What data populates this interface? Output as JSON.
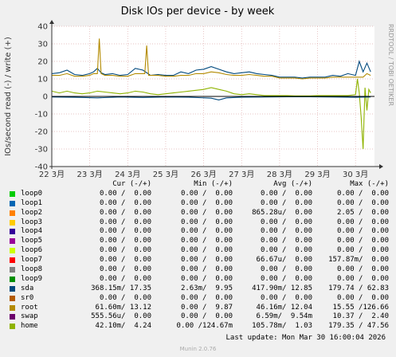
{
  "chart_data": {
    "type": "line",
    "title": "Disk IOs per device - by week",
    "ylabel": "IOs/second read (-) / write (+)",
    "side_label": "RRDTOOL / TOBI OETIKER",
    "ylim": [
      -40,
      40
    ],
    "yticks": [
      -40,
      -30,
      -20,
      -10,
      0,
      10,
      20,
      30,
      40
    ],
    "x_ticks": [
      "22 3月",
      "23 3月",
      "24 3月",
      "25 3月",
      "26 3月",
      "27 3月",
      "28 3月",
      "29 3月",
      "30 3月"
    ],
    "x_range_days": [
      22,
      30.5
    ],
    "grid": true,
    "series": [
      {
        "name": "sda",
        "color": "#00487d",
        "x": [
          22.0,
          22.2,
          22.4,
          22.6,
          22.8,
          23.0,
          23.1,
          23.2,
          23.3,
          23.4,
          23.6,
          23.8,
          24.0,
          24.2,
          24.4,
          24.6,
          24.8,
          25.0,
          25.2,
          25.4,
          25.6,
          25.8,
          26.0,
          26.2,
          26.4,
          26.6,
          26.8,
          27.0,
          27.2,
          27.4,
          27.6,
          27.8,
          28.0,
          28.2,
          28.4,
          28.6,
          28.8,
          29.0,
          29.2,
          29.4,
          29.6,
          29.8,
          30.0,
          30.1,
          30.2,
          30.3,
          30.4
        ],
        "values": [
          13,
          13.5,
          15,
          12.5,
          12,
          13,
          14,
          16,
          13.5,
          12.5,
          13,
          12,
          12.5,
          16,
          15,
          12,
          12.5,
          12,
          12,
          14,
          13,
          15,
          15.5,
          17,
          15.5,
          14,
          13,
          13.5,
          14,
          13,
          12.5,
          12,
          11,
          11,
          11,
          10.5,
          11,
          11,
          11,
          12,
          11.5,
          13,
          12,
          20,
          14,
          19,
          14
        ]
      },
      {
        "name": "root",
        "color": "#b38a00",
        "x": [
          22.0,
          22.2,
          22.4,
          22.6,
          22.8,
          23.0,
          23.1,
          23.2,
          23.25,
          23.3,
          23.4,
          23.6,
          23.8,
          24.0,
          24.2,
          24.45,
          24.5,
          24.55,
          24.8,
          25.0,
          25.2,
          25.4,
          25.6,
          25.8,
          26.0,
          26.2,
          26.4,
          26.6,
          26.8,
          27.0,
          27.2,
          27.4,
          27.6,
          27.8,
          28.0,
          28.2,
          28.4,
          28.6,
          28.8,
          29.0,
          29.2,
          29.4,
          29.6,
          29.8,
          30.0,
          30.1,
          30.2,
          30.3,
          30.4
        ],
        "values": [
          12,
          12,
          13,
          11.5,
          11.5,
          12,
          13,
          13,
          33,
          13,
          12,
          12,
          11.5,
          11.5,
          13,
          13,
          29,
          12,
          12,
          11.5,
          11.5,
          12,
          12,
          13,
          13,
          14,
          13.5,
          12.5,
          12,
          12,
          12.5,
          12,
          11.5,
          11.5,
          10.5,
          10.5,
          10.5,
          10,
          10.5,
          10.5,
          10.5,
          11,
          11,
          11,
          11,
          11,
          11,
          13,
          12
        ]
      },
      {
        "name": "home",
        "color": "#8fb300",
        "x": [
          22.0,
          22.2,
          22.4,
          22.6,
          22.8,
          23.0,
          23.2,
          23.4,
          23.6,
          23.8,
          24.0,
          24.2,
          24.4,
          24.6,
          24.8,
          25.0,
          25.2,
          25.4,
          25.6,
          25.8,
          26.0,
          26.2,
          26.4,
          26.6,
          26.8,
          27.0,
          27.2,
          27.4,
          27.6,
          27.8,
          28.0,
          28.2,
          28.4,
          28.6,
          28.8,
          29.0,
          29.2,
          29.4,
          29.6,
          29.8,
          30.0,
          30.05,
          30.1,
          30.15,
          30.2,
          30.25,
          30.3,
          30.35,
          30.4
        ],
        "values": [
          3,
          2,
          3,
          2,
          1.5,
          2,
          3,
          2.5,
          2,
          1.5,
          2,
          3,
          2.5,
          1.5,
          1,
          1.5,
          2,
          2.5,
          3,
          3.5,
          4,
          5,
          4,
          3,
          1.5,
          1,
          1.5,
          1,
          0.5,
          0.5,
          0.5,
          0.5,
          0.3,
          0.3,
          0.3,
          0.5,
          0.5,
          0.5,
          0.5,
          0.5,
          1,
          10,
          2,
          -12,
          -30,
          5,
          -8,
          4,
          2
        ]
      },
      {
        "name": "sda read",
        "color": "#00487d",
        "x": [
          22.0,
          22.6,
          23.2,
          23.8,
          24.4,
          25.0,
          25.6,
          26.2,
          26.4,
          26.6,
          27.0,
          27.6,
          28.2,
          28.8,
          29.4,
          30.0,
          30.4
        ],
        "values": [
          -0.3,
          -0.5,
          -0.8,
          -0.3,
          -0.6,
          -0.3,
          -0.4,
          -1,
          -2,
          -0.8,
          -0.4,
          -0.3,
          -0.2,
          -0.2,
          -0.3,
          -0.5,
          -0.3
        ]
      }
    ]
  },
  "legend": {
    "headers": [
      "Cur (-/+)",
      "Min (-/+)",
      "Avg (-/+)",
      "Max (-/+)"
    ],
    "rows": [
      {
        "name": "loop0",
        "color": "#00cc00",
        "cur": "0.00 /  0.00",
        "min": "0.00 /  0.00",
        "avg": "0.00 /  0.00",
        "max": "0.00 /  0.00"
      },
      {
        "name": "loop1",
        "color": "#0066b3",
        "cur": "0.00 /  0.00",
        "min": "0.00 /  0.00",
        "avg": "0.00 /  0.00",
        "max": "0.00 /  0.00"
      },
      {
        "name": "loop2",
        "color": "#ff8000",
        "cur": "0.00 /  0.00",
        "min": "0.00 /  0.00",
        "avg": "865.28u/  0.00",
        "max": "2.05 /  0.00"
      },
      {
        "name": "loop3",
        "color": "#ffcc00",
        "cur": "0.00 /  0.00",
        "min": "0.00 /  0.00",
        "avg": "0.00 /  0.00",
        "max": "0.00 /  0.00"
      },
      {
        "name": "loop4",
        "color": "#330099",
        "cur": "0.00 /  0.00",
        "min": "0.00 /  0.00",
        "avg": "0.00 /  0.00",
        "max": "0.00 /  0.00"
      },
      {
        "name": "loop5",
        "color": "#990099",
        "cur": "0.00 /  0.00",
        "min": "0.00 /  0.00",
        "avg": "0.00 /  0.00",
        "max": "0.00 /  0.00"
      },
      {
        "name": "loop6",
        "color": "#ccff00",
        "cur": "0.00 /  0.00",
        "min": "0.00 /  0.00",
        "avg": "0.00 /  0.00",
        "max": "0.00 /  0.00"
      },
      {
        "name": "loop7",
        "color": "#ff0000",
        "cur": "0.00 /  0.00",
        "min": "0.00 /  0.00",
        "avg": "66.67u/  0.00",
        "max": "157.87m/  0.00"
      },
      {
        "name": "loop8",
        "color": "#808080",
        "cur": "0.00 /  0.00",
        "min": "0.00 /  0.00",
        "avg": "0.00 /  0.00",
        "max": "0.00 /  0.00"
      },
      {
        "name": "loop9",
        "color": "#008f00",
        "cur": "0.00 /  0.00",
        "min": "0.00 /  0.00",
        "avg": "0.00 /  0.00",
        "max": "0.00 /  0.00"
      },
      {
        "name": "sda",
        "color": "#00487d",
        "cur": "368.15m/ 17.35",
        "min": "2.63m/  9.95",
        "avg": "417.90m/ 12.85",
        "max": "179.74 / 62.83"
      },
      {
        "name": "sr0",
        "color": "#b35a00",
        "cur": "0.00 /  0.00",
        "min": "0.00 /  0.00",
        "avg": "0.00 /  0.00",
        "max": "0.00 /  0.00"
      },
      {
        "name": "root",
        "color": "#b38a00",
        "cur": "61.60m/ 13.12",
        "min": "0.00 /  9.87",
        "avg": "46.16m/ 12.04",
        "max": "15.55 /126.66"
      },
      {
        "name": "swap",
        "color": "#6b006b",
        "cur": "555.56u/  0.00",
        "min": "0.00 /  0.00",
        "avg": "6.59m/  9.54m",
        "max": "10.37 /  2.40"
      },
      {
        "name": "home",
        "color": "#8fb300",
        "cur": "42.10m/  4.24",
        "min": "0.00 /124.67m",
        "avg": "105.78m/  1.03",
        "max": "179.35 / 47.56"
      }
    ]
  },
  "footer": {
    "last_update": "Last update: Mon Mar 30 16:00:04 2026",
    "version": "Munin 2.0.76"
  }
}
